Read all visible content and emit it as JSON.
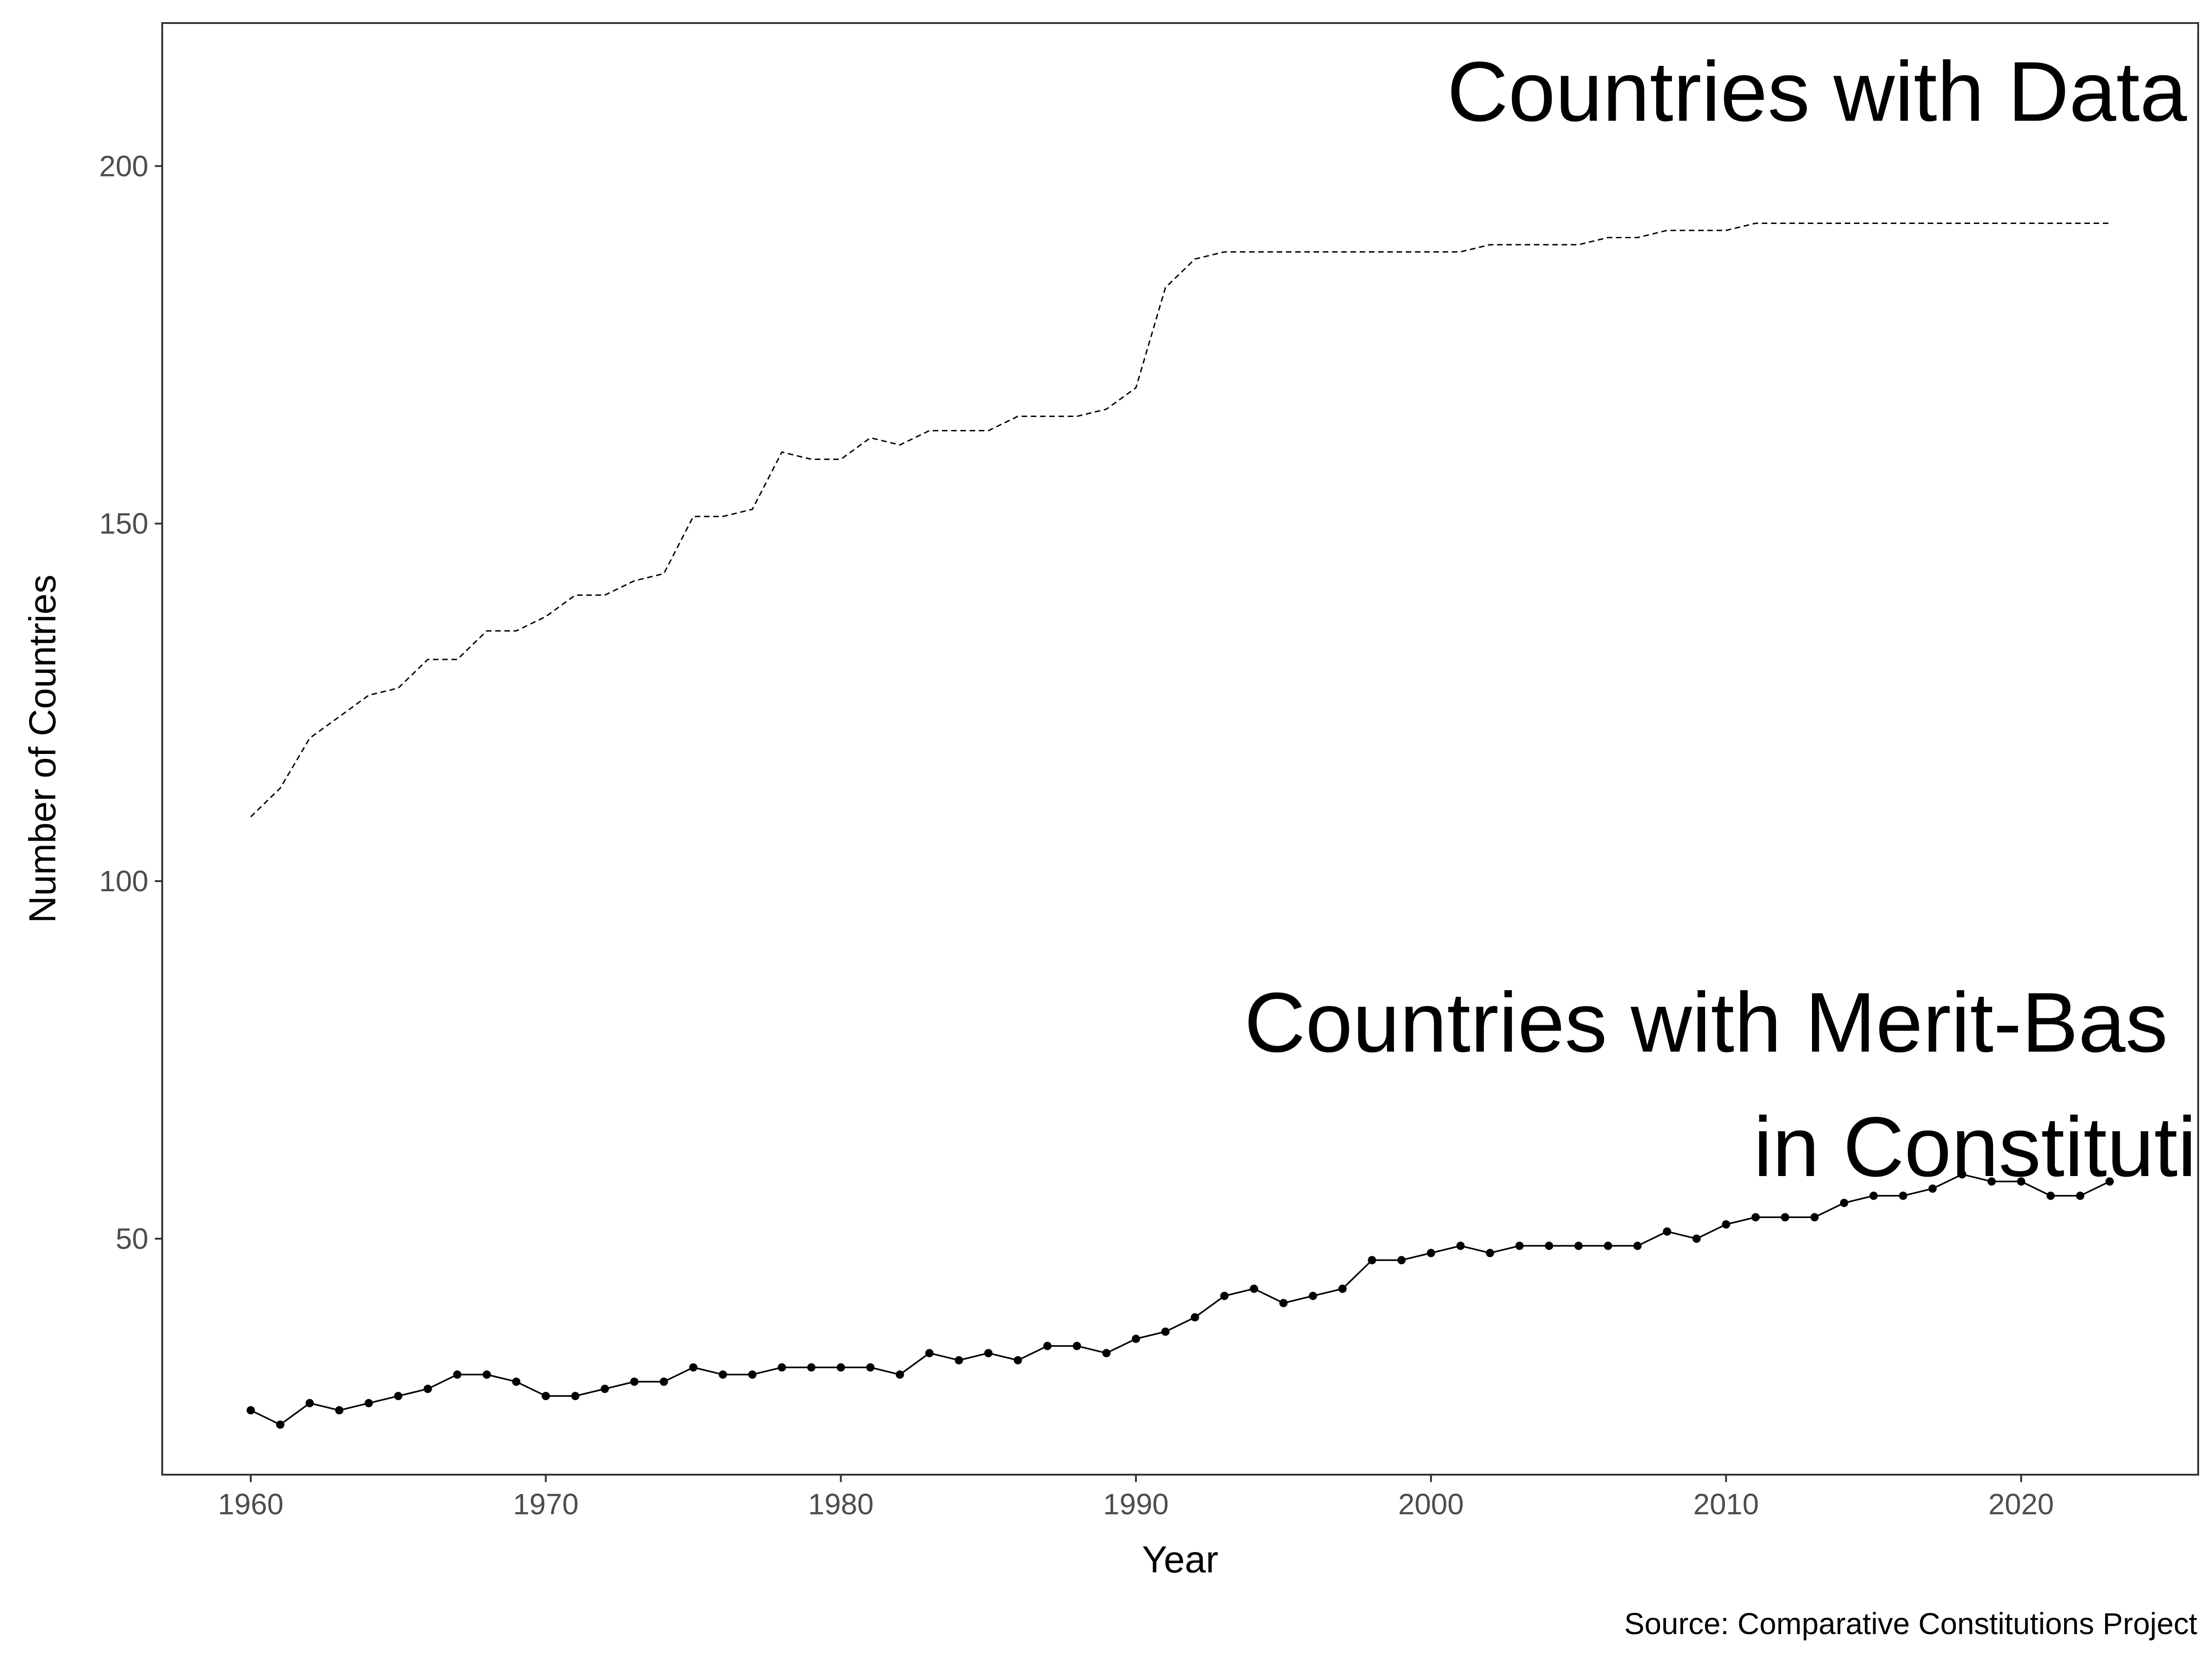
{
  "chart_data": {
    "type": "line",
    "xlabel": "Year",
    "ylabel": "Number of Countries",
    "caption": "Source: Comparative Constitutions Project",
    "annotations": {
      "data_line": "Countries with Data",
      "merit_line1": "Countries with Merit-Bas",
      "merit_line2": "in Constituti"
    },
    "xlim": [
      1957,
      2026
    ],
    "ylim": [
      17,
      220
    ],
    "x_ticks": [
      1960,
      1970,
      1980,
      1990,
      2000,
      2010,
      2020
    ],
    "y_ticks": [
      50,
      100,
      150,
      200
    ],
    "grid": false,
    "legend": "none",
    "x": [
      1960,
      1961,
      1962,
      1963,
      1964,
      1965,
      1966,
      1967,
      1968,
      1969,
      1970,
      1971,
      1972,
      1973,
      1974,
      1975,
      1976,
      1977,
      1978,
      1979,
      1980,
      1981,
      1982,
      1983,
      1984,
      1985,
      1986,
      1987,
      1988,
      1989,
      1990,
      1991,
      1992,
      1993,
      1994,
      1995,
      1996,
      1997,
      1998,
      1999,
      2000,
      2001,
      2002,
      2003,
      2004,
      2005,
      2006,
      2007,
      2008,
      2009,
      2010,
      2011,
      2012,
      2013,
      2014,
      2015,
      2016,
      2017,
      2018,
      2019,
      2020,
      2021,
      2022,
      2023
    ],
    "series": [
      {
        "style": "dashed",
        "points": false,
        "values": [
          109,
          113,
          120,
          123,
          126,
          127,
          131,
          131,
          135,
          135,
          137,
          140,
          140,
          142,
          143,
          151,
          151,
          152,
          160,
          159,
          159,
          162,
          161,
          163,
          163,
          163,
          165,
          165,
          165,
          166,
          169,
          183,
          187,
          188,
          188,
          188,
          188,
          188,
          188,
          188,
          188,
          188,
          189,
          189,
          189,
          189,
          190,
          190,
          191,
          191,
          191,
          192,
          192,
          192,
          192,
          192,
          192,
          192,
          192,
          192,
          192,
          192,
          192,
          192
        ]
      },
      {
        "style": "solid",
        "points": true,
        "values": [
          26,
          24,
          27,
          26,
          27,
          28,
          29,
          31,
          31,
          30,
          28,
          28,
          29,
          30,
          30,
          32,
          31,
          31,
          32,
          32,
          32,
          32,
          31,
          34,
          33,
          34,
          33,
          35,
          35,
          34,
          36,
          37,
          39,
          42,
          43,
          41,
          42,
          43,
          47,
          47,
          48,
          49,
          48,
          49,
          49,
          49,
          49,
          49,
          51,
          50,
          52,
          53,
          53,
          53,
          55,
          56,
          56,
          57,
          59,
          58,
          58,
          56,
          56,
          58
        ]
      }
    ]
  }
}
